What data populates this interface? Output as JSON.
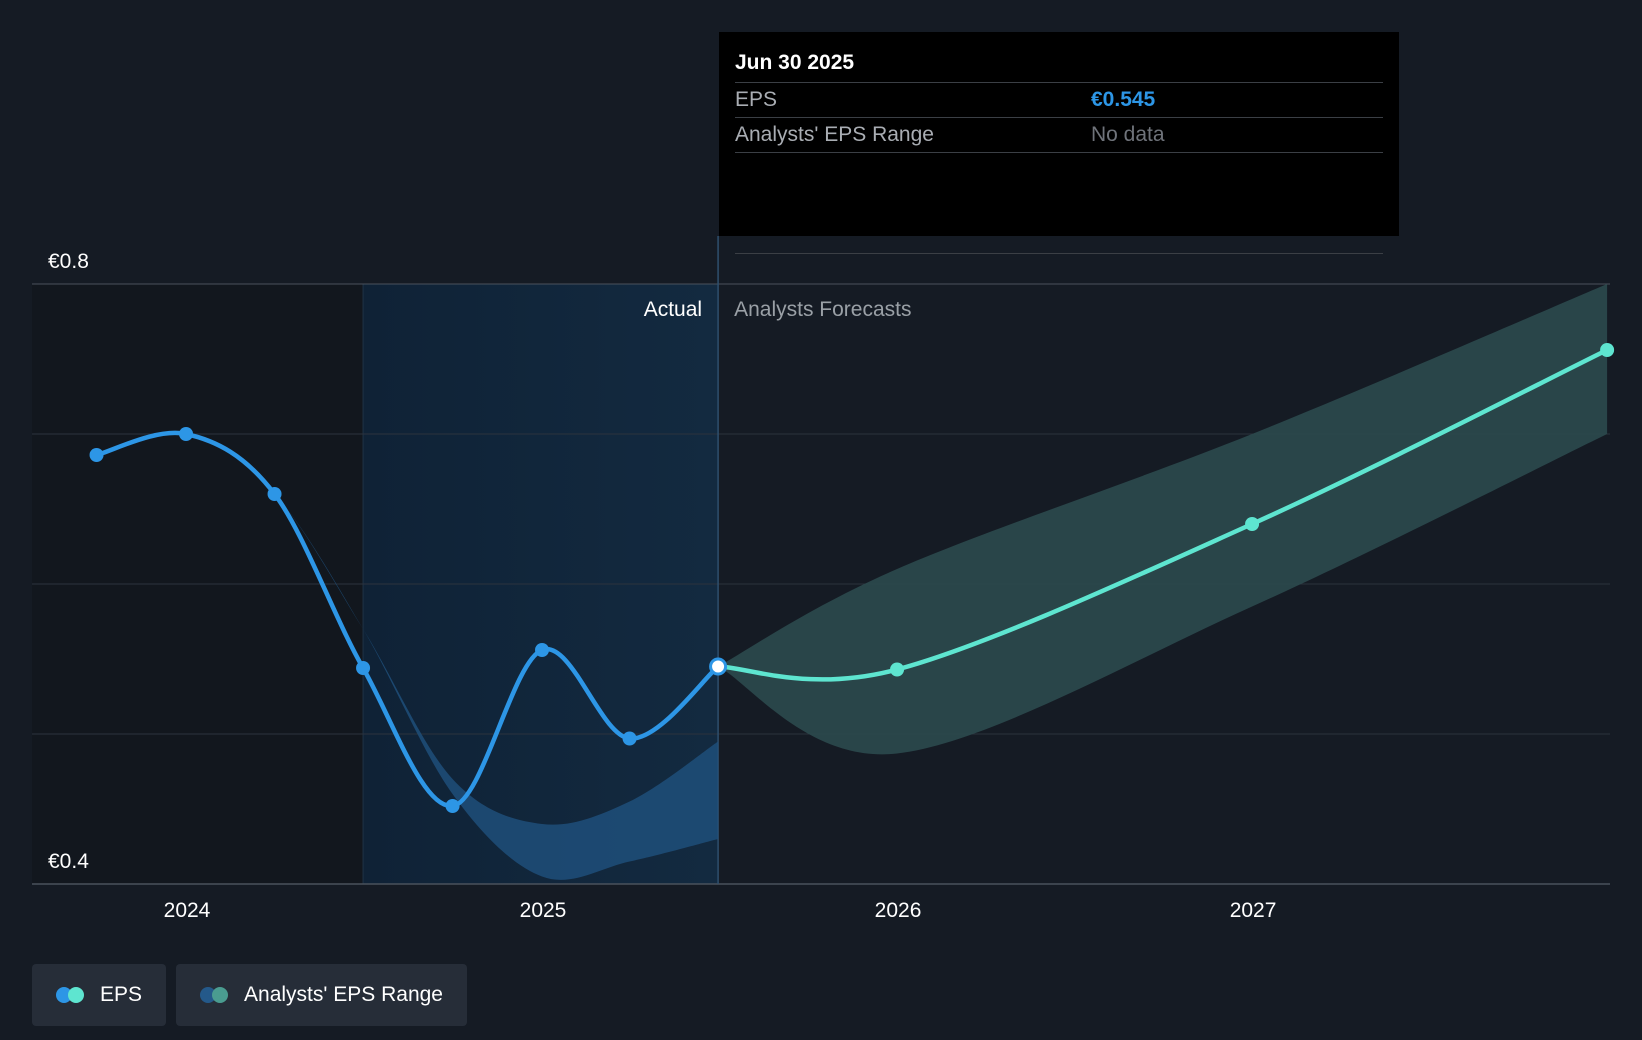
{
  "tooltip": {
    "date": "Jun 30 2025",
    "rows": [
      {
        "label": "EPS",
        "value": "€0.545"
      },
      {
        "label": "Analysts' EPS Range",
        "value": "No data"
      }
    ]
  },
  "sections": {
    "actual": "Actual",
    "forecast": "Analysts Forecasts"
  },
  "legend": [
    {
      "label": "EPS",
      "colors": [
        "#2d96e6",
        "#5ee5d0"
      ]
    },
    {
      "label": "Analysts' EPS Range",
      "colors": [
        "#24598a",
        "#4a9c90"
      ]
    }
  ],
  "colors": {
    "background": "#151b24",
    "actual_line": "#2d96e6",
    "forecast_line": "#5ee5d0",
    "actual_range": "#1f4f7a",
    "forecast_range": "#2b4a4e",
    "highlight": "#132a40"
  },
  "chart_data": {
    "type": "line",
    "title": "",
    "xlabel": "",
    "ylabel": "",
    "x_ticks": [
      "2024",
      "2025",
      "2026",
      "2027"
    ],
    "y_tick_labels": [
      "€0.8",
      "€0.4"
    ],
    "ylim": [
      0.4,
      0.8
    ],
    "grid": true,
    "legend_position": "bottom-left",
    "series": [
      {
        "name": "EPS",
        "segment": "actual",
        "points": [
          {
            "date": "2023-09-30",
            "value": 0.686
          },
          {
            "date": "2023-12-31",
            "value": 0.7
          },
          {
            "date": "2024-03-31",
            "value": 0.66
          },
          {
            "date": "2024-06-30",
            "value": 0.544
          },
          {
            "date": "2024-09-30",
            "value": 0.452
          },
          {
            "date": "2024-12-31",
            "value": 0.556
          },
          {
            "date": "2025-03-31",
            "value": 0.497
          },
          {
            "date": "2025-06-30",
            "value": 0.545
          }
        ]
      },
      {
        "name": "EPS",
        "segment": "forecast",
        "points": [
          {
            "date": "2025-06-30",
            "value": 0.545
          },
          {
            "date": "2025-12-31",
            "value": 0.543
          },
          {
            "date": "2026-12-31",
            "value": 0.64
          },
          {
            "date": "2027-12-31",
            "value": 0.756
          }
        ]
      }
    ],
    "ranges": [
      {
        "name": "Analysts' EPS Range",
        "segment": "actual",
        "points": [
          {
            "date": "2023-12-31",
            "low": 0.7,
            "high": 0.7
          },
          {
            "date": "2024-03-31",
            "low": 0.66,
            "high": 0.66
          },
          {
            "date": "2024-06-30",
            "low": 0.57,
            "high": 0.57
          },
          {
            "date": "2024-09-30",
            "low": 0.46,
            "high": 0.47
          },
          {
            "date": "2024-12-31",
            "low": 0.405,
            "high": 0.44
          },
          {
            "date": "2025-03-31",
            "low": 0.415,
            "high": 0.455
          },
          {
            "date": "2025-06-30",
            "low": 0.43,
            "high": 0.495
          }
        ]
      },
      {
        "name": "Analysts' EPS Range",
        "segment": "forecast",
        "points": [
          {
            "date": "2025-06-30",
            "low": 0.545,
            "high": 0.545
          },
          {
            "date": "2025-12-31",
            "low": 0.487,
            "high": 0.61
          },
          {
            "date": "2026-12-31",
            "low": 0.585,
            "high": 0.7
          },
          {
            "date": "2027-12-31",
            "low": 0.7,
            "high": 0.8
          }
        ]
      }
    ],
    "highlight_period": {
      "start": "2024-06-30",
      "end": "2025-06-30"
    },
    "selected_date": "2025-06-30"
  }
}
